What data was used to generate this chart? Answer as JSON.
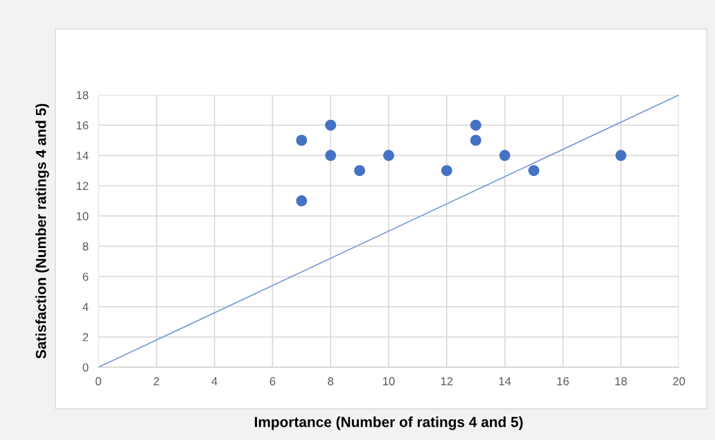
{
  "chart_data": {
    "type": "scatter",
    "xlabel": "Importance (Number of ratings 4 and 5)",
    "ylabel": "Satisfaction (Number ratings 4 and 5)",
    "series": [
      {
        "marker": "circle",
        "color": "#4472c4",
        "x": [
          7,
          7,
          8,
          8,
          9,
          10,
          12,
          13,
          13,
          14,
          15,
          18
        ],
        "values": [
          15,
          11,
          16,
          14,
          13,
          14,
          13,
          16,
          15,
          14,
          13,
          14
        ]
      },
      {
        "type": "line",
        "marker": "none",
        "color": "#7a9ad8",
        "x": [
          0,
          20
        ],
        "values": [
          0,
          18
        ]
      }
    ],
    "xlim": [
      0,
      20
    ],
    "xticks": [
      0,
      2,
      4,
      6,
      8,
      10,
      12,
      14,
      16,
      18,
      20
    ],
    "ylim": [
      0,
      18
    ],
    "yticks": [
      0,
      2,
      4,
      6,
      8,
      10,
      12,
      14,
      16,
      18
    ],
    "grid": true,
    "legend": false
  }
}
